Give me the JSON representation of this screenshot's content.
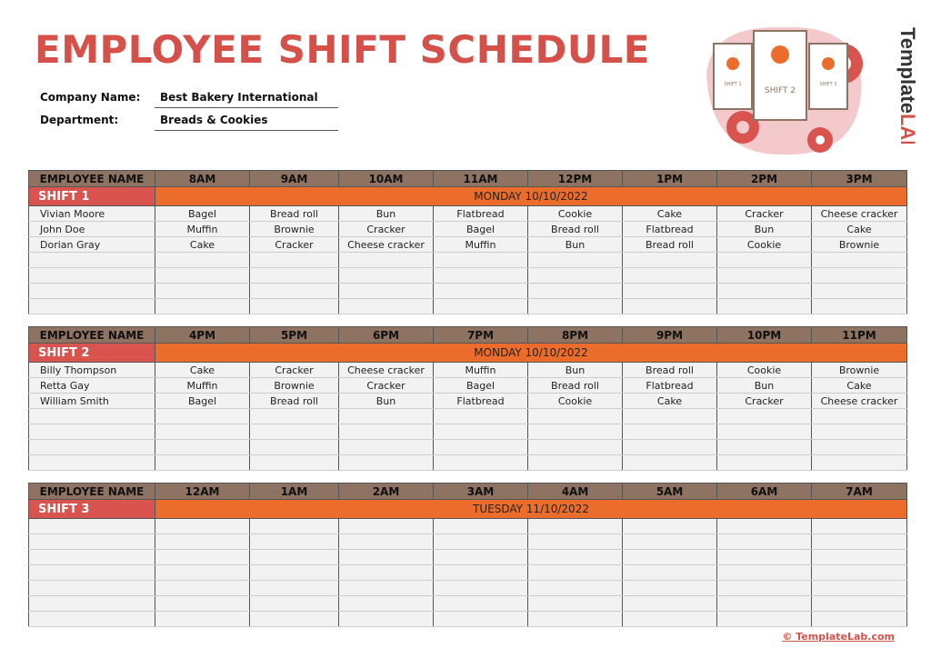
{
  "title": "EMPLOYEE SHIFT SCHEDULE",
  "company": {
    "label": "Company Name:",
    "value": "Best Bakery International"
  },
  "department": {
    "label": "Department:",
    "value": "Breads & Cookies"
  },
  "colors": {
    "accent_red": "#d6504a",
    "header_brown": "#8e7262",
    "day_orange": "#ec6d2b",
    "row_grey": "#f2f2f2"
  },
  "illustration": {
    "card_labels": [
      "SHIFT 1",
      "SHIFT 2",
      "SHIFT 3"
    ]
  },
  "logo": {
    "text": "TemplateLAB"
  },
  "tables": [
    {
      "name_header": "EMPLOYEE NAME",
      "hours": [
        "8AM",
        "9AM",
        "10AM",
        "11AM",
        "12PM",
        "1PM",
        "2PM",
        "3PM"
      ],
      "shift": "SHIFT 1",
      "day": "MONDAY 10/10/2022",
      "rows": [
        {
          "name": "Vivian Moore",
          "cells": [
            "Bagel",
            "Bread roll",
            "Bun",
            "Flatbread",
            "Cookie",
            "Cake",
            "Cracker",
            "Cheese cracker"
          ]
        },
        {
          "name": "John Doe",
          "cells": [
            "Muffin",
            "Brownie",
            "Cracker",
            "Bagel",
            "Bread roll",
            "Flatbread",
            "Bun",
            "Cake"
          ]
        },
        {
          "name": "Dorian Gray",
          "cells": [
            "Cake",
            "Cracker",
            "Cheese cracker",
            "Muffin",
            "Bun",
            "Bread roll",
            "Cookie",
            "Brownie"
          ]
        }
      ]
    },
    {
      "name_header": "EMPLOYEE NAME",
      "hours": [
        "4PM",
        "5PM",
        "6PM",
        "7PM",
        "8PM",
        "9PM",
        "10PM",
        "11PM"
      ],
      "shift": "SHIFT 2",
      "day": "MONDAY 10/10/2022",
      "rows": [
        {
          "name": "Billy Thompson",
          "cells": [
            "Cake",
            "Cracker",
            "Cheese cracker",
            "Muffin",
            "Bun",
            "Bread roll",
            "Cookie",
            "Brownie"
          ]
        },
        {
          "name": "Retta Gay",
          "cells": [
            "Muffin",
            "Brownie",
            "Cracker",
            "Bagel",
            "Bread roll",
            "Flatbread",
            "Bun",
            "Cake"
          ]
        },
        {
          "name": "William Smith",
          "cells": [
            "Bagel",
            "Bread roll",
            "Bun",
            "Flatbread",
            "Cookie",
            "Cake",
            "Cracker",
            "Cheese cracker"
          ]
        }
      ]
    },
    {
      "name_header": "EMPLOYEE NAME",
      "hours": [
        "12AM",
        "1AM",
        "2AM",
        "3AM",
        "4AM",
        "5AM",
        "6AM",
        "7AM"
      ],
      "shift": "SHIFT 3",
      "day": "TUESDAY 11/10/2022",
      "rows": []
    }
  ],
  "footer": "© TemplateLab.com"
}
